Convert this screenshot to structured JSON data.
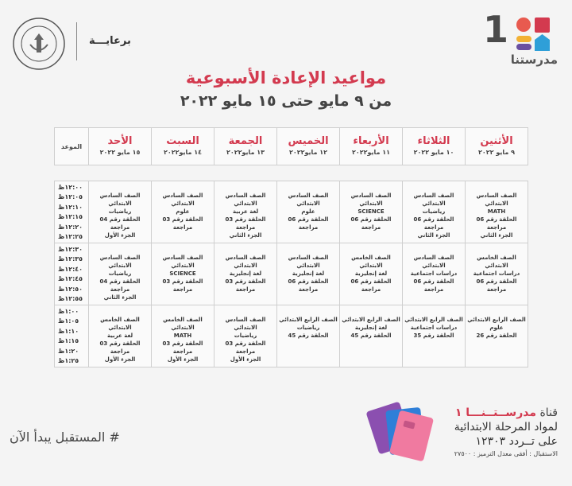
{
  "header": {
    "logo_number": "1",
    "logo_name": "مدرستنا",
    "sponsor": "برعايـــة",
    "ministry_seal_text": "MINISTRY OF EDUCATION AND TECHNICAL EDUCATION"
  },
  "title": {
    "main": "مواعيد الإعادة الأسبوعية",
    "sub": "من ٩ مايو حتى ١٥ مايو ٢٠٢٢"
  },
  "table": {
    "time_header": "الموعد",
    "days": [
      {
        "name": "الأثنين",
        "date": "٩ مايو ٢٠٢٢"
      },
      {
        "name": "الثلاثاء",
        "date": "١٠ مايو ٢٠٢٢"
      },
      {
        "name": "الأربعاء",
        "date": "١١ مايو٢٠٢٢"
      },
      {
        "name": "الخميس",
        "date": "١٢ مايو٢٠٢٢"
      },
      {
        "name": "الجمعة",
        "date": "١٣ مايو٢٠٢٢"
      },
      {
        "name": "السبت",
        "date": "١٤ مايو٢٠٢٢"
      },
      {
        "name": "الأحد",
        "date": "١٥ مايو ٢٠٢٢"
      }
    ],
    "blocks": [
      {
        "times": [
          "١٢:٠٠ظ",
          "١٢:٠٥ظ",
          "١٢:١٠ظ",
          "١٢:١٥ظ",
          "١٢:٢٠ظ",
          "١٢:٢٥ظ"
        ],
        "cells": [
          [
            "الصف السادس الابتدائي",
            "MATH",
            "الحلقة رقم 06 مراجعة",
            "الجزء الثاني"
          ],
          [
            "الصف السادس الابتدائي",
            "رياضيات",
            "الحلقة رقم 06 مراجعة",
            "الجزء الثاني"
          ],
          [
            "الصف السادس الابتدائي",
            "SCIENCE",
            "الحلقة رقم 06 مراجعة"
          ],
          [
            "الصف السادس الابتدائي",
            "علوم",
            "الحلقة رقم 06 مراجعة"
          ],
          [
            "الصف السادس الابتدائي",
            "لغة عربية",
            "الحلقة رقم 03 مراجعة",
            "الجزء الثاني"
          ],
          [
            "الصف السادس الابتدائي",
            "علوم",
            "الحلقة رقم 03 مراجعة"
          ],
          [
            "الصف السادس الابتدائي",
            "رياضيات",
            "الحلقة رقم 04 مراجعة",
            "الجزء الأول"
          ]
        ]
      },
      {
        "times": [
          "١٢:٣٠ظ",
          "١٢:٣٥ظ",
          "١٢:٤٠ظ",
          "١٢:٤٥ظ",
          "١٢:٥٠ظ",
          "١٢:٥٥ظ"
        ],
        "cells": [
          [
            "الصف الخامس الابتدائي",
            "دراسات اجتماعية",
            "الحلقة رقم 06 مراجعة"
          ],
          [
            "الصف السادس الابتدائي",
            "دراسات اجتماعية",
            "الحلقة رقم 06 مراجعة"
          ],
          [
            "الصف الخامس الابتدائي",
            "لغة إنجليزية",
            "الحلقة رقم 06 مراجعة"
          ],
          [
            "الصف السادس الابتدائي",
            "لغة إنجليزية",
            "الحلقة رقم 06 مراجعة"
          ],
          [
            "الصف السادس الابتدائي",
            "لغة إنجليزية",
            "الحلقة رقم 03 مراجعة"
          ],
          [
            "الصف السادس الابتدائي",
            "SCIENCE",
            "الحلقة رقم 03 مراجعة"
          ],
          [
            "الصف السادس الابتدائي",
            "رياضيات",
            "الحلقة رقم 04 مراجعة",
            "الجزء الثاني"
          ]
        ]
      },
      {
        "times": [
          "١:٠٠ظ",
          "١:٠٥ظ",
          "١:١٠ظ",
          "١:١٥ظ",
          "١:٢٠ظ",
          "١:٢٥ظ"
        ],
        "cells": [
          [
            "الصف الرابع الابتدائي",
            "علوم",
            "الحلقة رقم 26"
          ],
          [
            "الصف الرابع الابتدائي",
            "دراسات اجتماعية",
            "الحلقة رقم 35"
          ],
          [
            "الصف الرابع الابتدائي",
            "لغة إنجليزية",
            "الحلقة رقم 45"
          ],
          [
            "الصف الرابع الابتدائي",
            "رياضيات",
            "الحلقة رقم 45"
          ],
          [
            "الصف السادس الابتدائي",
            "رياضيات",
            "الحلقة رقم 03 مراجعة",
            "الجزء الأول"
          ],
          [
            "الصف الخامس الابتدائي",
            "MATH",
            "الحلقة رقم 03 مراجعة",
            "الجزء الأول"
          ],
          [
            "الصف الخامس الابتدائي",
            "لغة عربية",
            "الحلقة رقم 03 مراجعة",
            "الجزء الأول"
          ]
        ]
      }
    ]
  },
  "footer": {
    "slogan": "# المستقبل يبدأ الآن",
    "channel_prefix": "قناة",
    "channel_name": "مدرســتــنـــا ١",
    "channel_line2": "لمواد المرحلة الابتدائية",
    "channel_line3": "على تــردد ١٢٣٠٣",
    "reception": "الاستقبال : أفقى معدل الترميز : ٢٧٥٠٠"
  },
  "colors": {
    "accent": "#d33a4f",
    "text": "#333333",
    "grid": "#cfcfcf"
  }
}
